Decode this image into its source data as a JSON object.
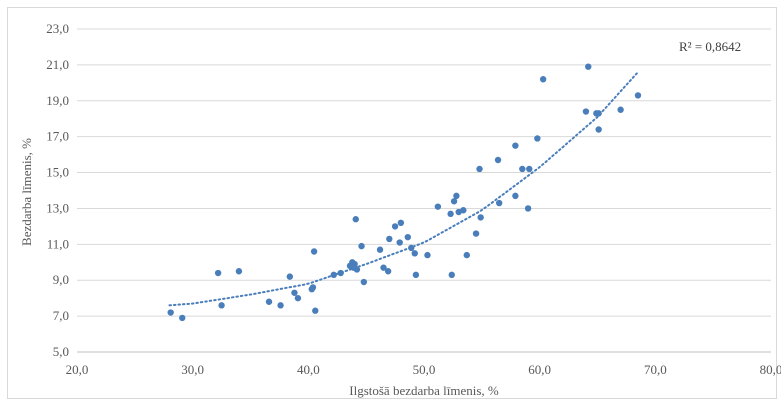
{
  "chart_data": {
    "type": "scatter",
    "xlabel": "Ilgstošā bezdarba līmenis, %",
    "ylabel": "Bezdarba līmenis, %",
    "xlim": [
      20,
      80
    ],
    "ylim": [
      5,
      23
    ],
    "x_ticks": [
      "20,0",
      "30,0",
      "40,0",
      "50,0",
      "60,0",
      "70,0",
      "80,0"
    ],
    "y_ticks": [
      "5,0",
      "7,0",
      "9,0",
      "11,0",
      "13,0",
      "15,0",
      "17,0",
      "19,0",
      "21,0",
      "23,0"
    ],
    "grid": "horizontal",
    "marker_color": "#4a7ebb",
    "trendline": {
      "type": "polynomial",
      "style": "dotted",
      "color": "#4a7ebb",
      "x_range": [
        28.0,
        68.5
      ],
      "points": [
        [
          28.0,
          7.6
        ],
        [
          30.0,
          7.7
        ],
        [
          35.0,
          8.2
        ],
        [
          40.0,
          8.8
        ],
        [
          45.0,
          9.9
        ],
        [
          50.0,
          11.1
        ],
        [
          55.0,
          12.9
        ],
        [
          60.0,
          15.3
        ],
        [
          65.0,
          18.1
        ],
        [
          68.5,
          20.6
        ]
      ]
    },
    "annotation": "R² = 0,8642",
    "points": [
      [
        28.1,
        7.2
      ],
      [
        29.1,
        6.9
      ],
      [
        32.2,
        9.4
      ],
      [
        32.5,
        7.6
      ],
      [
        34.0,
        9.5
      ],
      [
        36.6,
        7.8
      ],
      [
        37.6,
        7.6
      ],
      [
        38.4,
        9.2
      ],
      [
        38.8,
        8.3
      ],
      [
        39.1,
        8.0
      ],
      [
        40.3,
        8.5
      ],
      [
        40.4,
        8.6
      ],
      [
        40.5,
        10.6
      ],
      [
        40.6,
        7.3
      ],
      [
        42.2,
        9.3
      ],
      [
        42.8,
        9.4
      ],
      [
        43.6,
        9.8
      ],
      [
        43.8,
        10.0
      ],
      [
        43.9,
        9.7
      ],
      [
        44.0,
        9.9
      ],
      [
        44.1,
        12.4
      ],
      [
        44.2,
        9.6
      ],
      [
        44.6,
        10.9
      ],
      [
        44.8,
        8.9
      ],
      [
        46.2,
        10.7
      ],
      [
        46.5,
        9.7
      ],
      [
        46.9,
        9.5
      ],
      [
        47.0,
        11.3
      ],
      [
        47.5,
        12.0
      ],
      [
        47.9,
        11.1
      ],
      [
        48.0,
        12.2
      ],
      [
        48.6,
        11.4
      ],
      [
        48.9,
        10.8
      ],
      [
        49.2,
        10.5
      ],
      [
        49.3,
        9.3
      ],
      [
        50.3,
        10.4
      ],
      [
        51.2,
        13.1
      ],
      [
        52.3,
        12.7
      ],
      [
        52.4,
        9.3
      ],
      [
        52.6,
        13.4
      ],
      [
        52.8,
        13.7
      ],
      [
        53.0,
        12.8
      ],
      [
        53.4,
        12.9
      ],
      [
        53.7,
        10.4
      ],
      [
        54.5,
        11.6
      ],
      [
        54.8,
        15.2
      ],
      [
        54.9,
        12.5
      ],
      [
        56.4,
        15.7
      ],
      [
        56.5,
        13.3
      ],
      [
        57.9,
        16.5
      ],
      [
        57.9,
        13.7
      ],
      [
        58.5,
        15.2
      ],
      [
        59.0,
        13.0
      ],
      [
        59.1,
        15.2
      ],
      [
        59.8,
        16.9
      ],
      [
        60.3,
        20.2
      ],
      [
        64.0,
        18.4
      ],
      [
        64.2,
        20.9
      ],
      [
        64.9,
        18.3
      ],
      [
        65.1,
        17.4
      ],
      [
        65.1,
        18.3
      ],
      [
        67.0,
        18.5
      ],
      [
        68.5,
        19.3
      ]
    ]
  }
}
